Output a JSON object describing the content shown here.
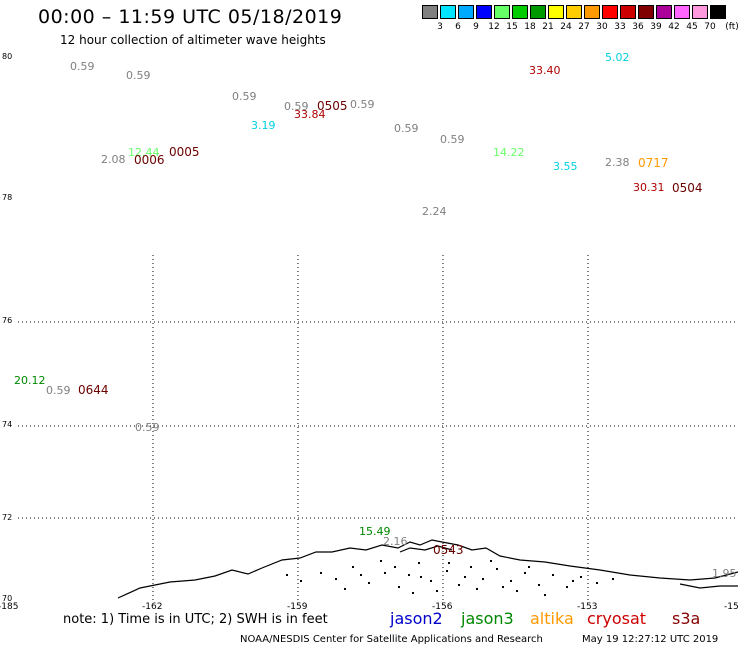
{
  "header": {
    "title": "00:00 – 11:59 UTC 05/18/2019",
    "subtitle": "12 hour collection of altimeter wave heights"
  },
  "colorbar": {
    "colors": [
      "#808080",
      "#00e5ff",
      "#00aaff",
      "#0000ff",
      "#66ff66",
      "#00cc00",
      "#009900",
      "#ffff00",
      "#ffcc00",
      "#ff9900",
      "#ff0000",
      "#cc0000",
      "#800000",
      "#aa0099",
      "#ff66ff",
      "#ff99dd",
      "#000000"
    ],
    "labels": [
      "3",
      "6",
      "9",
      "12",
      "15",
      "18",
      "21",
      "24",
      "27",
      "30",
      "33",
      "36",
      "39",
      "42",
      "45",
      "70"
    ],
    "unit": "(ft)"
  },
  "map": {
    "lat_labels": [
      "80",
      "78",
      "76",
      "74",
      "72",
      "70"
    ],
    "lon_labels": [
      "-185",
      "-162",
      "-159",
      "-156",
      "-153",
      "-15"
    ],
    "measurements": [
      {
        "text": "0.59",
        "color": "#808080"
      },
      {
        "text": "0.59",
        "color": "#808080"
      },
      {
        "text": "0.59",
        "color": "#808080"
      },
      {
        "text": "0.59",
        "color": "#808080"
      },
      {
        "text": "0.59",
        "color": "#808080"
      },
      {
        "text": "0.59",
        "color": "#808080"
      },
      {
        "text": "0.59",
        "color": "#808080"
      },
      {
        "text": "33.84",
        "color": "#b00000"
      },
      {
        "text": "3.19",
        "color": "#00d0e0"
      },
      {
        "text": "12.44",
        "color": "#66ff66"
      },
      {
        "text": "2.08",
        "color": "#808080"
      },
      {
        "text": "33.40",
        "color": "#b00000"
      },
      {
        "text": "5.02",
        "color": "#00d0e0"
      },
      {
        "text": "14.22",
        "color": "#66ff66"
      },
      {
        "text": "3.55",
        "color": "#00d0e0"
      },
      {
        "text": "2.38",
        "color": "#808080"
      },
      {
        "text": "30.31",
        "color": "#b00000"
      },
      {
        "text": "2.24",
        "color": "#808080"
      },
      {
        "text": "20.12",
        "color": "#008800"
      },
      {
        "text": "0.59",
        "color": "#808080"
      },
      {
        "text": "0.59",
        "color": "#808080"
      },
      {
        "text": "15.49",
        "color": "#008800"
      },
      {
        "text": "2.16",
        "color": "#808080"
      },
      {
        "text": "1.95",
        "color": "#808080"
      }
    ],
    "times": [
      {
        "text": "0505",
        "color": "#6b0000"
      },
      {
        "text": "0006",
        "color": "#6b0000"
      },
      {
        "text": "0005",
        "color": "#6b0000"
      },
      {
        "text": "0717",
        "color": "#ff9900"
      },
      {
        "text": "0504",
        "color": "#6b0000"
      },
      {
        "text": "0644",
        "color": "#6b0000"
      },
      {
        "text": "0543",
        "color": "#6b0000"
      }
    ]
  },
  "footer": {
    "note": "note: 1) Time is in UTC; 2) SWH is in feet",
    "satellites": [
      {
        "name": "jason2",
        "color": "#0000cc"
      },
      {
        "name": "jason3",
        "color": "#008800"
      },
      {
        "name": "altika",
        "color": "#ff9900"
      },
      {
        "name": "cryosat",
        "color": "#cc0000"
      },
      {
        "name": "s3a",
        "color": "#880000"
      }
    ],
    "credit": "NOAA/NESDIS Center for Satellite Applications and Research",
    "timestamp": "May 19 12:27:12 UTC 2019"
  }
}
